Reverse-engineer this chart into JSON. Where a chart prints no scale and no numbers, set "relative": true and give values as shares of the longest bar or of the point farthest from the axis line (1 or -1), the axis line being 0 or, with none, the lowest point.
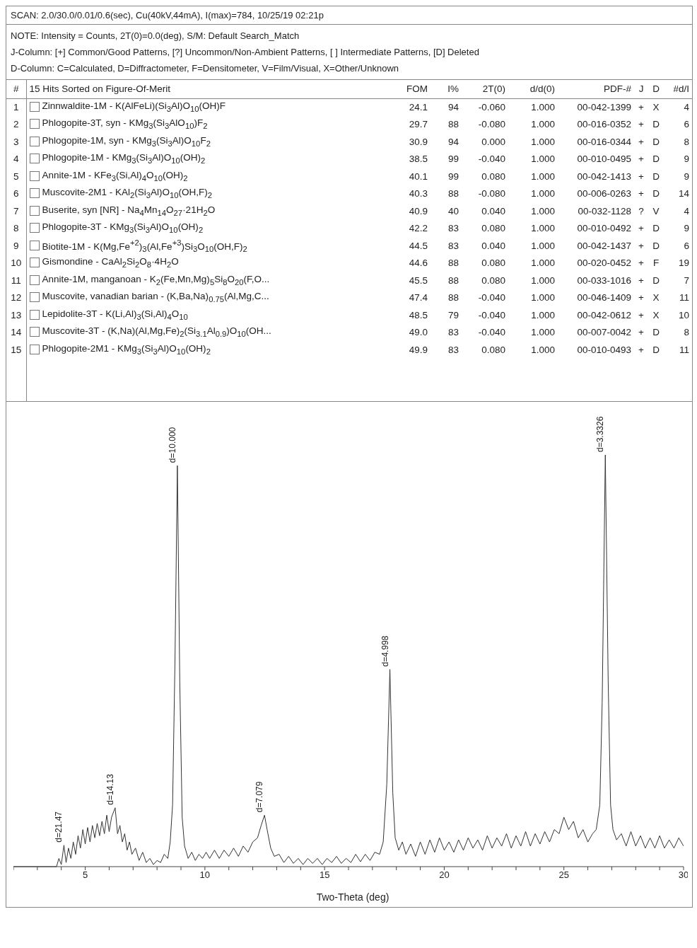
{
  "chart_data": {
    "type": "line",
    "title": "SCAN: 2.0/30.0/0.01/0.6(sec), Cu(40kV,44mA), I(max)=784, 10/25/19 02:21p",
    "xlabel": "Two-Theta (deg)",
    "relative": true,
    "color": "#333333",
    "xlim": [
      2,
      30
    ],
    "xticks": [
      {
        "value": 2,
        "label": null
      },
      {
        "value": 3,
        "label": null
      },
      {
        "value": 4,
        "label": null
      },
      5,
      {
        "value": 6,
        "label": null
      },
      {
        "value": 7,
        "label": null
      },
      {
        "value": 8,
        "label": null
      },
      {
        "value": 9,
        "label": null
      },
      10,
      {
        "value": 11,
        "label": null
      },
      {
        "value": 12,
        "label": null
      },
      {
        "value": 13,
        "label": null
      },
      {
        "value": 14,
        "label": null
      },
      15,
      {
        "value": 16,
        "label": null
      },
      {
        "value": 17,
        "label": null
      },
      {
        "value": 18,
        "label": null
      },
      {
        "value": 19,
        "label": null
      },
      20,
      {
        "value": 21,
        "label": null
      },
      {
        "value": 22,
        "label": null
      },
      {
        "value": 23,
        "label": null
      },
      {
        "value": 24,
        "label": null
      },
      25,
      {
        "value": 26,
        "label": null
      },
      {
        "value": 27,
        "label": null
      },
      {
        "value": 28,
        "label": null
      },
      {
        "value": 29,
        "label": null
      },
      30
    ],
    "x": [
      2,
      3.8,
      3.9,
      4.0,
      4.11,
      4.2,
      4.3,
      4.4,
      4.5,
      4.6,
      4.7,
      4.8,
      4.9,
      5.0,
      5.1,
      5.2,
      5.3,
      5.4,
      5.5,
      5.6,
      5.7,
      5.8,
      5.9,
      6.0,
      6.1,
      6.25,
      6.35,
      6.45,
      6.55,
      6.65,
      6.75,
      6.85,
      6.95,
      7.1,
      7.25,
      7.4,
      7.55,
      7.7,
      7.85,
      8.0,
      8.15,
      8.3,
      8.45,
      8.55,
      8.65,
      8.75,
      8.85,
      8.95,
      9.05,
      9.15,
      9.3,
      9.45,
      9.6,
      9.75,
      9.9,
      10.05,
      10.2,
      10.4,
      10.6,
      10.8,
      11.0,
      11.2,
      11.4,
      11.6,
      11.8,
      12.0,
      12.2,
      12.35,
      12.49,
      12.6,
      12.75,
      12.9,
      13.1,
      13.3,
      13.5,
      13.7,
      13.9,
      14.1,
      14.3,
      14.5,
      14.7,
      14.9,
      15.1,
      15.3,
      15.5,
      15.7,
      15.9,
      16.1,
      16.3,
      16.5,
      16.7,
      16.9,
      17.1,
      17.3,
      17.45,
      17.6,
      17.73,
      17.85,
      17.95,
      18.1,
      18.25,
      18.4,
      18.6,
      18.8,
      19.0,
      19.2,
      19.4,
      19.6,
      19.8,
      20.0,
      20.2,
      20.4,
      20.6,
      20.8,
      21.0,
      21.2,
      21.4,
      21.6,
      21.8,
      22.0,
      22.2,
      22.4,
      22.6,
      22.8,
      23.0,
      23.2,
      23.4,
      23.6,
      23.8,
      24.0,
      24.2,
      24.4,
      24.6,
      24.8,
      25.0,
      25.2,
      25.4,
      25.6,
      25.8,
      26.0,
      26.2,
      26.35,
      26.5,
      26.6,
      26.73,
      26.85,
      26.95,
      27.05,
      27.2,
      27.4,
      27.6,
      27.8,
      28.0,
      28.2,
      28.4,
      28.6,
      28.8,
      29.0,
      29.2,
      29.4,
      29.6,
      29.8,
      30.0
    ],
    "values": [
      0,
      0,
      0.02,
      0.005,
      0.052,
      0.01,
      0.045,
      0.02,
      0.06,
      0.03,
      0.075,
      0.045,
      0.09,
      0.055,
      0.095,
      0.06,
      0.1,
      0.07,
      0.105,
      0.075,
      0.11,
      0.08,
      0.125,
      0.085,
      0.12,
      0.143,
      0.08,
      0.1,
      0.06,
      0.08,
      0.04,
      0.06,
      0.03,
      0.045,
      0.015,
      0.035,
      0.01,
      0.02,
      0.005,
      0.015,
      0.01,
      0.03,
      0.02,
      0.06,
      0.15,
      0.5,
      0.974,
      0.45,
      0.12,
      0.05,
      0.02,
      0.035,
      0.015,
      0.03,
      0.02,
      0.035,
      0.02,
      0.04,
      0.02,
      0.04,
      0.025,
      0.045,
      0.025,
      0.05,
      0.035,
      0.06,
      0.07,
      0.1,
      0.125,
      0.09,
      0.045,
      0.025,
      0.03,
      0.01,
      0.025,
      0.008,
      0.02,
      0.005,
      0.02,
      0.008,
      0.02,
      0.005,
      0.02,
      0.01,
      0.025,
      0.008,
      0.02,
      0.01,
      0.03,
      0.012,
      0.03,
      0.015,
      0.035,
      0.03,
      0.06,
      0.2,
      0.479,
      0.18,
      0.07,
      0.04,
      0.06,
      0.03,
      0.055,
      0.025,
      0.06,
      0.03,
      0.065,
      0.035,
      0.07,
      0.04,
      0.06,
      0.035,
      0.065,
      0.04,
      0.07,
      0.045,
      0.065,
      0.04,
      0.075,
      0.045,
      0.07,
      0.05,
      0.08,
      0.045,
      0.075,
      0.05,
      0.085,
      0.05,
      0.08,
      0.055,
      0.085,
      0.06,
      0.09,
      0.08,
      0.12,
      0.09,
      0.11,
      0.07,
      0.09,
      0.06,
      0.08,
      0.09,
      0.15,
      0.4,
      1.0,
      0.45,
      0.15,
      0.09,
      0.065,
      0.08,
      0.05,
      0.085,
      0.05,
      0.075,
      0.045,
      0.07,
      0.045,
      0.075,
      0.045,
      0.065,
      0.045,
      0.07,
      0.05
    ],
    "annotations": [
      "NOTE: Intensity = Counts, 2T(0)=0.0(deg), S/M: Default Search_Match",
      "J-Column: [+] Common/Good Patterns, [?] Uncommon/Non-Ambient Patterns, [ ] Intermediate Patterns, [D] Deleted",
      "D-Column: C=Calculated, D=Diffractometer, F=Densitometer, V=Film/Visual, X=Other/Unknown",
      "#",
      "15 Hits Sorted on Figure-Of-Merit",
      "FOM",
      "I%",
      "2T(0)",
      "d/d(0)",
      "PDF-#",
      "J",
      "D",
      "#d/I",
      "1",
      "Zinnwaldite-1M - K(AlFeLi)(Si$_{3}$Al)O$_{10}$(OH)F",
      "24.1",
      "94",
      "-0.060",
      "1.000",
      "00-042-1399",
      "+",
      "X",
      "4",
      "2",
      "Phlogopite-3T, syn - KMg$_{3}$(Si$_{3}$AlO$_{10}$)F$_{2}$",
      "29.7",
      "88",
      "-0.080",
      "1.000",
      "00-016-0352",
      "+",
      "D",
      "6",
      "3",
      "Phlogopite-1M, syn - KMg$_{3}$(Si$_{3}$Al)O$_{10}$F$_{2}$",
      "30.9",
      "94",
      "0.000",
      "1.000",
      "00-016-0344",
      "+",
      "D",
      "8",
      "4",
      "Phlogopite-1M - KMg$_{3}$(Si$_{3}$Al)O$_{10}$(OH)$_{2}$",
      "38.5",
      "99",
      "-0.040",
      "1.000",
      "00-010-0495",
      "+",
      "D",
      "9",
      "5",
      "Annite-1M - KFe$_{3}$(Si,Al)$_{4}$O$_{10}$(OH)$_{2}$",
      "40.1",
      "99",
      "0.080",
      "1.000",
      "00-042-1413",
      "+",
      "D",
      "9",
      "6",
      "Muscovite-2M1 - KAl$_{2}$(Si$_{3}$Al)O$_{10}$(OH,F)$_{2}$",
      "40.3",
      "88",
      "-0.080",
      "1.000",
      "00-006-0263",
      "+",
      "D",
      "14",
      "7",
      "Buserite, syn [NR] - Na$_{4}$Mn$_{14}$O$_{27}$·21H$_{2}$O",
      "40.9",
      "40",
      "0.040",
      "1.000",
      "00-032-1128",
      "?",
      "V",
      "4",
      "8",
      "Phlogopite-3T - KMg$_{3}$(Si$_{3}$Al)O$_{10}$(OH)$_{2}$",
      "42.2",
      "83",
      "0.080",
      "1.000",
      "00-010-0492",
      "+",
      "D",
      "9",
      "9",
      "Biotite-1M - K(Mg,Fe$^{+2}$)$_{3}$(Al,Fe$^{+3}$)Si$_{3}$O$_{10}$(OH,F)$_{2}$",
      "44.5",
      "83",
      "0.040",
      "1.000",
      "00-042-1437",
      "+",
      "D",
      "6",
      "10",
      "Gismondine - CaAl$_{2}$Si$_{2}$O$_{8}$·4H$_{2}$O",
      "44.6",
      "88",
      "0.080",
      "1.000",
      "00-020-0452",
      "+",
      "F",
      "19",
      "11",
      "Annite-1M, manganoan - K$_{2}$(Fe,Mn,Mg)$_{5}$Si$_{8}$O$_{20}$(F,O...",
      "45.5",
      "88",
      "0.080",
      "1.000",
      "00-033-1016",
      "+",
      "D",
      "7",
      "12",
      "Muscovite, vanadian barian - (K,Ba,Na)$_{0.75}$(Al,Mg,C...",
      "47.4",
      "88",
      "-0.040",
      "1.000",
      "00-046-1409",
      "+",
      "X",
      "11",
      "13",
      "Lepidolite-3T - K(Li,Al)$_{3}$(Si,Al)$_{4}$O$_{10}$",
      "48.5",
      "79",
      "-0.040",
      "1.000",
      "00-042-0612",
      "+",
      "X",
      "10",
      "14",
      "Muscovite-3T - (K,Na)(Al,Mg,Fe)$_{2}$(Si$_{3.1}$Al$_{0.9}$)O$_{10}$(OH...",
      "49.0",
      "83",
      "-0.040",
      "1.000",
      "00-007-0042",
      "+",
      "D",
      "8",
      "15",
      "Phlogopite-2M1 - KMg$_{3}$(Si$_{3}$Al)O$_{10}$(OH)$_{2}$",
      "49.9",
      "83",
      "0.080",
      "1.000",
      "00-010-0493",
      "+",
      "D",
      "11",
      {
        "text": "d=21.47",
        "x": 4.11,
        "y": 0.052
      },
      {
        "text": "d=14.13",
        "x": 6.25,
        "y": 0.143
      },
      {
        "text": "d=10.000",
        "x": 8.85,
        "y": 0.974
      },
      {
        "text": "d=7.079",
        "x": 12.49,
        "y": 0.125
      },
      {
        "text": "d=4.998",
        "x": 17.73,
        "y": 0.479
      },
      {
        "text": "d=3.3326",
        "x": 26.73,
        "y": 1.0
      }
    ]
  }
}
